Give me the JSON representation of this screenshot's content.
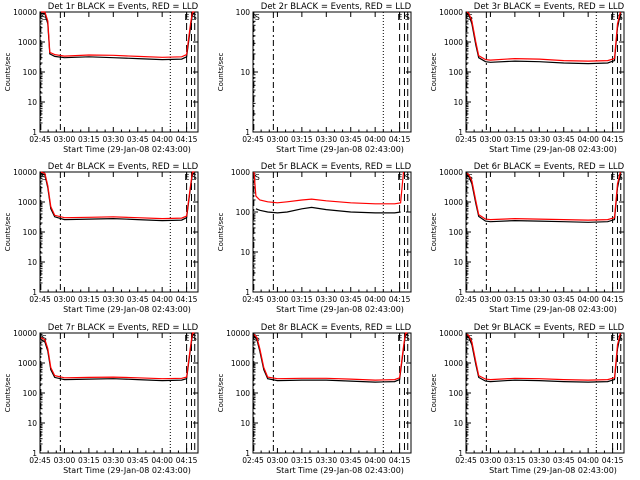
{
  "chart_data": [
    {
      "type": "line",
      "title": "Det 1r BLACK = Events, RED = LLD",
      "xlabel": "Start Time (29-Jan-08 02:43:00)",
      "ylabel": "Counts/sec",
      "xlim": [
        2.75,
        4.3667
      ],
      "ylim": [
        1,
        10000
      ],
      "yscale": "log",
      "x_ticks": [
        "02:45",
        "03:00",
        "03:15",
        "03:30",
        "03:45",
        "04:00",
        "04:15"
      ],
      "y_ticks": [
        "1",
        "10",
        "100",
        "1000",
        "10000"
      ],
      "markers": [
        {
          "x": 2.7583,
          "label": "S"
        },
        {
          "x": 4.2583,
          "label": "E"
        },
        {
          "x": 4.3333,
          "label": "S"
        }
      ],
      "series": [
        {
          "name": "Events",
          "color": "#000000",
          "x": [
            2.76,
            2.8,
            2.83,
            2.85,
            2.9,
            3.0,
            3.25,
            3.5,
            3.75,
            4.0,
            4.2,
            4.25,
            4.29,
            4.31,
            4.33
          ],
          "y": [
            9000,
            9000,
            4000,
            400,
            330,
            300,
            320,
            300,
            280,
            260,
            270,
            320,
            3000,
            9000,
            9000
          ]
        },
        {
          "name": "LLD",
          "color": "#ff0000",
          "x": [
            2.76,
            2.8,
            2.83,
            2.85,
            2.9,
            3.0,
            3.25,
            3.5,
            3.75,
            4.0,
            4.2,
            4.25,
            4.29,
            4.31,
            4.33
          ],
          "y": [
            10000,
            10000,
            5000,
            450,
            380,
            340,
            370,
            360,
            330,
            310,
            320,
            380,
            4000,
            10000,
            10000
          ]
        }
      ]
    },
    {
      "type": "line",
      "title": "Det 2r BLACK = Events, RED = LLD",
      "xlabel": "Start Time (29-Jan-08 02:43:00)",
      "ylabel": "Counts/sec",
      "xlim": [
        2.75,
        4.3667
      ],
      "ylim": [
        1,
        100
      ],
      "yscale": "log",
      "x_ticks": [
        "02:45",
        "03:00",
        "03:15",
        "03:30",
        "03:45",
        "04:00",
        "04:15"
      ],
      "y_ticks": [
        "1",
        "10",
        "100"
      ],
      "markers": [
        {
          "x": 2.7583,
          "label": "S"
        },
        {
          "x": 4.2583,
          "label": "E"
        },
        {
          "x": 4.3333,
          "label": "S"
        }
      ],
      "series": [
        {
          "name": "Events",
          "color": "#000000",
          "x": [],
          "y": []
        },
        {
          "name": "LLD",
          "color": "#ff0000",
          "x": [],
          "y": []
        }
      ]
    },
    {
      "type": "line",
      "title": "Det 3r BLACK = Events, RED = LLD",
      "xlabel": "Start Time (29-Jan-08 02:43:00)",
      "ylabel": "Counts/sec",
      "xlim": [
        2.75,
        4.3667
      ],
      "ylim": [
        1,
        10000
      ],
      "yscale": "log",
      "x_ticks": [
        "02:45",
        "03:00",
        "03:15",
        "03:30",
        "03:45",
        "04:00",
        "04:15"
      ],
      "y_ticks": [
        "1",
        "10",
        "100",
        "1000",
        "10000"
      ],
      "markers": [
        {
          "x": 2.7583,
          "label": "S"
        },
        {
          "x": 4.2583,
          "label": "E"
        },
        {
          "x": 4.3333,
          "label": "S"
        }
      ],
      "series": [
        {
          "name": "Events",
          "color": "#000000",
          "x": [
            2.76,
            2.78,
            2.81,
            2.85,
            2.88,
            2.95,
            3.0,
            3.25,
            3.5,
            3.75,
            4.0,
            4.2,
            4.27,
            4.3,
            4.33
          ],
          "y": [
            9000,
            8000,
            4000,
            800,
            300,
            220,
            210,
            230,
            220,
            200,
            190,
            200,
            240,
            3000,
            9000
          ]
        },
        {
          "name": "LLD",
          "color": "#ff0000",
          "x": [
            2.76,
            2.78,
            2.81,
            2.85,
            2.88,
            2.95,
            3.0,
            3.25,
            3.5,
            3.75,
            4.0,
            4.2,
            4.27,
            4.3,
            4.33
          ],
          "y": [
            10000,
            9000,
            5000,
            1000,
            350,
            260,
            250,
            280,
            270,
            240,
            230,
            240,
            280,
            4000,
            10000
          ]
        }
      ]
    },
    {
      "type": "line",
      "title": "Det 4r BLACK = Events, RED = LLD",
      "xlabel": "Start Time (29-Jan-08 02:43:00)",
      "ylabel": "Counts/sec",
      "xlim": [
        2.75,
        4.3667
      ],
      "ylim": [
        1,
        10000
      ],
      "yscale": "log",
      "x_ticks": [
        "02:45",
        "03:00",
        "03:15",
        "03:30",
        "03:45",
        "04:00",
        "04:15"
      ],
      "y_ticks": [
        "1",
        "10",
        "100",
        "1000",
        "10000"
      ],
      "markers": [
        {
          "x": 2.7583,
          "label": "S"
        },
        {
          "x": 4.2583,
          "label": "E"
        },
        {
          "x": 4.3333,
          "label": "S"
        }
      ],
      "series": [
        {
          "name": "Events",
          "color": "#000000",
          "x": [
            2.76,
            2.8,
            2.83,
            2.86,
            2.9,
            3.0,
            3.25,
            3.5,
            3.75,
            4.0,
            4.2,
            4.25,
            4.29,
            4.31,
            4.33
          ],
          "y": [
            9000,
            8000,
            3000,
            600,
            320,
            260,
            270,
            280,
            260,
            240,
            250,
            300,
            3000,
            9000,
            9000
          ]
        },
        {
          "name": "LLD",
          "color": "#ff0000",
          "x": [
            2.76,
            2.8,
            2.83,
            2.86,
            2.9,
            3.0,
            3.25,
            3.5,
            3.75,
            4.0,
            4.2,
            4.25,
            4.29,
            4.31,
            4.33
          ],
          "y": [
            10000,
            9000,
            3500,
            700,
            360,
            300,
            310,
            320,
            300,
            280,
            290,
            340,
            3500,
            10000,
            10000
          ]
        }
      ]
    },
    {
      "type": "line",
      "title": "Det 5r BLACK = Events, RED = LLD",
      "xlabel": "Start Time (29-Jan-08 02:43:00)",
      "ylabel": "Counts/sec",
      "xlim": [
        2.75,
        4.3667
      ],
      "ylim": [
        1,
        1000
      ],
      "yscale": "log",
      "x_ticks": [
        "02:45",
        "03:00",
        "03:15",
        "03:30",
        "03:45",
        "04:00",
        "04:15"
      ],
      "y_ticks": [
        "1",
        "10",
        "100",
        "1000"
      ],
      "markers": [
        {
          "x": 2.7583,
          "label": "S"
        },
        {
          "x": 4.2583,
          "label": "E"
        },
        {
          "x": 4.3333,
          "label": "S"
        }
      ],
      "series": [
        {
          "name": "Events",
          "color": "#000000",
          "x": [
            2.78,
            2.82,
            2.9,
            3.0,
            3.1,
            3.25,
            3.35,
            3.5,
            3.75,
            4.0,
            4.2,
            4.26
          ],
          "y": [
            120,
            110,
            100,
            95,
            100,
            120,
            130,
            115,
            100,
            95,
            95,
            100
          ]
        },
        {
          "name": "LLD",
          "color": "#ff0000",
          "x": [
            2.76,
            2.78,
            2.82,
            2.9,
            3.0,
            3.1,
            3.25,
            3.35,
            3.5,
            3.75,
            4.0,
            4.2,
            4.26,
            4.29
          ],
          "y": [
            1000,
            250,
            200,
            180,
            170,
            180,
            200,
            210,
            190,
            170,
            160,
            160,
            170,
            1000
          ]
        }
      ]
    },
    {
      "type": "line",
      "title": "Det 6r BLACK = Events, RED = LLD",
      "xlabel": "Start Time (29-Jan-08 02:43:00)",
      "ylabel": "Counts/sec",
      "xlim": [
        2.75,
        4.3667
      ],
      "ylim": [
        1,
        10000
      ],
      "yscale": "log",
      "x_ticks": [
        "02:45",
        "03:00",
        "03:15",
        "03:30",
        "03:45",
        "04:00",
        "04:15"
      ],
      "y_ticks": [
        "1",
        "10",
        "100",
        "1000",
        "10000"
      ],
      "markers": [
        {
          "x": 2.7583,
          "label": "S"
        },
        {
          "x": 4.2583,
          "label": "E"
        },
        {
          "x": 4.3333,
          "label": "S"
        }
      ],
      "series": [
        {
          "name": "Events",
          "color": "#000000",
          "x": [
            2.76,
            2.78,
            2.81,
            2.85,
            2.88,
            2.95,
            3.0,
            3.25,
            3.5,
            3.75,
            4.0,
            4.2,
            4.27,
            4.3,
            4.33
          ],
          "y": [
            8000,
            7000,
            4000,
            900,
            330,
            230,
            220,
            240,
            230,
            220,
            210,
            220,
            260,
            3000,
            9000
          ]
        },
        {
          "name": "LLD",
          "color": "#ff0000",
          "x": [
            2.76,
            2.78,
            2.81,
            2.85,
            2.88,
            2.95,
            3.0,
            3.25,
            3.5,
            3.75,
            4.0,
            4.2,
            4.27,
            4.3,
            4.33
          ],
          "y": [
            9000,
            8000,
            5000,
            1100,
            380,
            270,
            260,
            280,
            270,
            260,
            250,
            260,
            300,
            4000,
            10000
          ]
        }
      ]
    },
    {
      "type": "line",
      "title": "Det 7r BLACK = Events, RED = LLD",
      "xlabel": "Start Time (29-Jan-08 02:43:00)",
      "ylabel": "Counts/sec",
      "xlim": [
        2.75,
        4.3667
      ],
      "ylim": [
        1,
        10000
      ],
      "yscale": "log",
      "x_ticks": [
        "02:45",
        "03:00",
        "03:15",
        "03:30",
        "03:45",
        "04:00",
        "04:15"
      ],
      "y_ticks": [
        "1",
        "10",
        "100",
        "1000",
        "10000"
      ],
      "markers": [
        {
          "x": 2.7583,
          "label": "S"
        },
        {
          "x": 4.2583,
          "label": "E"
        },
        {
          "x": 4.3333,
          "label": "S"
        }
      ],
      "series": [
        {
          "name": "Events",
          "color": "#000000",
          "x": [
            2.76,
            2.8,
            2.83,
            2.86,
            2.9,
            3.0,
            3.25,
            3.5,
            3.75,
            4.0,
            4.2,
            4.25,
            4.29,
            4.31,
            4.33
          ],
          "y": [
            6000,
            5000,
            2500,
            600,
            330,
            280,
            290,
            300,
            280,
            260,
            270,
            300,
            3000,
            9000,
            9000
          ]
        },
        {
          "name": "LLD",
          "color": "#ff0000",
          "x": [
            2.76,
            2.8,
            2.83,
            2.86,
            2.9,
            3.0,
            3.25,
            3.5,
            3.75,
            4.0,
            4.2,
            4.25,
            4.29,
            4.31,
            4.33
          ],
          "y": [
            7000,
            6000,
            3000,
            700,
            380,
            320,
            330,
            340,
            320,
            300,
            310,
            340,
            3500,
            10000,
            10000
          ]
        }
      ]
    },
    {
      "type": "line",
      "title": "Det 8r BLACK = Events, RED = LLD",
      "xlabel": "Start Time (29-Jan-08 02:43:00)",
      "ylabel": "Counts/sec",
      "xlim": [
        2.75,
        4.3667
      ],
      "ylim": [
        1,
        10000
      ],
      "yscale": "log",
      "x_ticks": [
        "02:45",
        "03:00",
        "03:15",
        "03:30",
        "03:45",
        "04:00",
        "04:15"
      ],
      "y_ticks": [
        "1",
        "10",
        "100",
        "1000",
        "10000"
      ],
      "markers": [
        {
          "x": 2.7583,
          "label": "S"
        },
        {
          "x": 4.2583,
          "label": "E"
        },
        {
          "x": 4.3333,
          "label": "S"
        }
      ],
      "series": [
        {
          "name": "Events",
          "color": "#000000",
          "x": [
            2.76,
            2.79,
            2.82,
            2.86,
            2.9,
            3.0,
            3.25,
            3.5,
            3.75,
            4.0,
            4.2,
            4.25,
            4.29,
            4.31,
            4.33
          ],
          "y": [
            8000,
            6000,
            2500,
            600,
            300,
            260,
            270,
            270,
            250,
            230,
            240,
            280,
            3000,
            9000,
            9000
          ]
        },
        {
          "name": "LLD",
          "color": "#ff0000",
          "x": [
            2.76,
            2.79,
            2.82,
            2.86,
            2.9,
            3.0,
            3.25,
            3.5,
            3.75,
            4.0,
            4.2,
            4.25,
            4.29,
            4.31,
            4.33
          ],
          "y": [
            9000,
            7000,
            3000,
            700,
            340,
            300,
            310,
            310,
            290,
            270,
            280,
            320,
            3500,
            10000,
            10000
          ]
        }
      ]
    },
    {
      "type": "line",
      "title": "Det 9r BLACK = Events, RED = LLD",
      "xlabel": "Start Time (29-Jan-08 02:43:00)",
      "ylabel": "Counts/sec",
      "xlim": [
        2.75,
        4.3667
      ],
      "ylim": [
        1,
        10000
      ],
      "yscale": "log",
      "x_ticks": [
        "02:45",
        "03:00",
        "03:15",
        "03:30",
        "03:45",
        "04:00",
        "04:15"
      ],
      "y_ticks": [
        "1",
        "10",
        "100",
        "1000",
        "10000"
      ],
      "markers": [
        {
          "x": 2.7583,
          "label": "S"
        },
        {
          "x": 4.2583,
          "label": "E"
        },
        {
          "x": 4.3333,
          "label": "S"
        }
      ],
      "series": [
        {
          "name": "Events",
          "color": "#000000",
          "x": [
            2.76,
            2.78,
            2.81,
            2.85,
            2.88,
            2.95,
            3.0,
            3.25,
            3.5,
            3.75,
            4.0,
            4.2,
            4.27,
            4.3,
            4.33
          ],
          "y": [
            8000,
            7000,
            4000,
            900,
            330,
            250,
            240,
            270,
            260,
            240,
            230,
            240,
            280,
            3000,
            9000
          ]
        },
        {
          "name": "LLD",
          "color": "#ff0000",
          "x": [
            2.76,
            2.78,
            2.81,
            2.85,
            2.88,
            2.95,
            3.0,
            3.25,
            3.5,
            3.75,
            4.0,
            4.2,
            4.27,
            4.3,
            4.33
          ],
          "y": [
            9000,
            8000,
            5000,
            1100,
            380,
            290,
            280,
            310,
            300,
            280,
            270,
            280,
            320,
            4000,
            10000
          ]
        }
      ]
    }
  ]
}
